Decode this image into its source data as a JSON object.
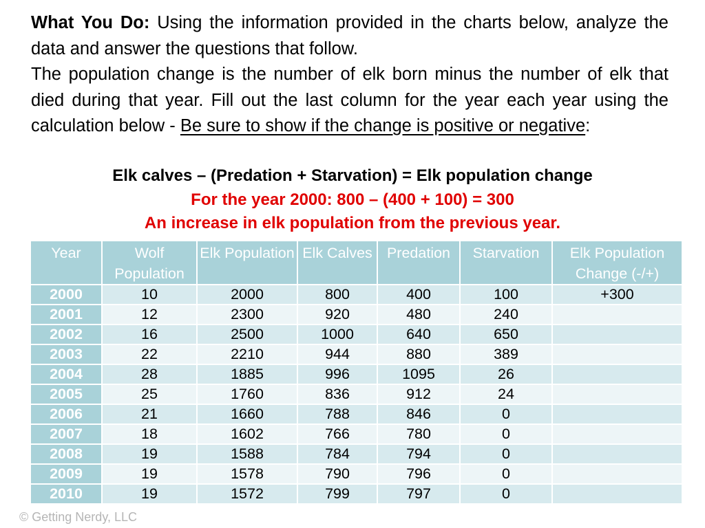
{
  "instructions": {
    "lead_label": "What You Do:",
    "lead_text": "  Using the information provided in the charts below, analyze the data and answer the questions that follow.",
    "para2_text": "The population change is the number of elk born minus the number of elk that died during that year.  Fill out the last column for the year each year using the calculation below - ",
    "para2_underlined": "Be sure to show if the change is positive or negative",
    "para2_end": ":"
  },
  "formula": "Elk calves – (Predation + Starvation) = Elk population change",
  "example": "For the year 2000:  800 – (400 + 100) = 300",
  "increase_note": "An increase in elk population from the previous year.",
  "table": {
    "headers": [
      "Year",
      "Wolf Population",
      "Elk Population",
      "Elk Calves",
      "Predation",
      "Starvation",
      "Elk Population Change (-/+)"
    ],
    "rows": [
      [
        "2000",
        "10",
        "2000",
        "800",
        "400",
        "100",
        "+300"
      ],
      [
        "2001",
        "12",
        "2300",
        "920",
        "480",
        "240",
        ""
      ],
      [
        "2002",
        "16",
        "2500",
        "1000",
        "640",
        "650",
        ""
      ],
      [
        "2003",
        "22",
        "2210",
        "944",
        "880",
        "389",
        ""
      ],
      [
        "2004",
        "28",
        "1885",
        "996",
        "1095",
        "26",
        ""
      ],
      [
        "2005",
        "25",
        "1760",
        "836",
        "912",
        "24",
        ""
      ],
      [
        "2006",
        "21",
        "1660",
        "788",
        "846",
        "0",
        ""
      ],
      [
        "2007",
        "18",
        "1602",
        "766",
        "780",
        "0",
        ""
      ],
      [
        "2008",
        "19",
        "1588",
        "784",
        "794",
        "0",
        ""
      ],
      [
        "2009",
        "19",
        "1578",
        "790",
        "796",
        "0",
        ""
      ],
      [
        "2010",
        "19",
        "1572",
        "799",
        "797",
        "0",
        ""
      ]
    ]
  },
  "copyright": "© Getting Nerdy, LLC",
  "colors": {
    "header_bg": "#a9d2d9",
    "row_odd_bg": "#d7eaee",
    "row_even_bg": "#edf5f7",
    "red_text": "#e00000"
  }
}
